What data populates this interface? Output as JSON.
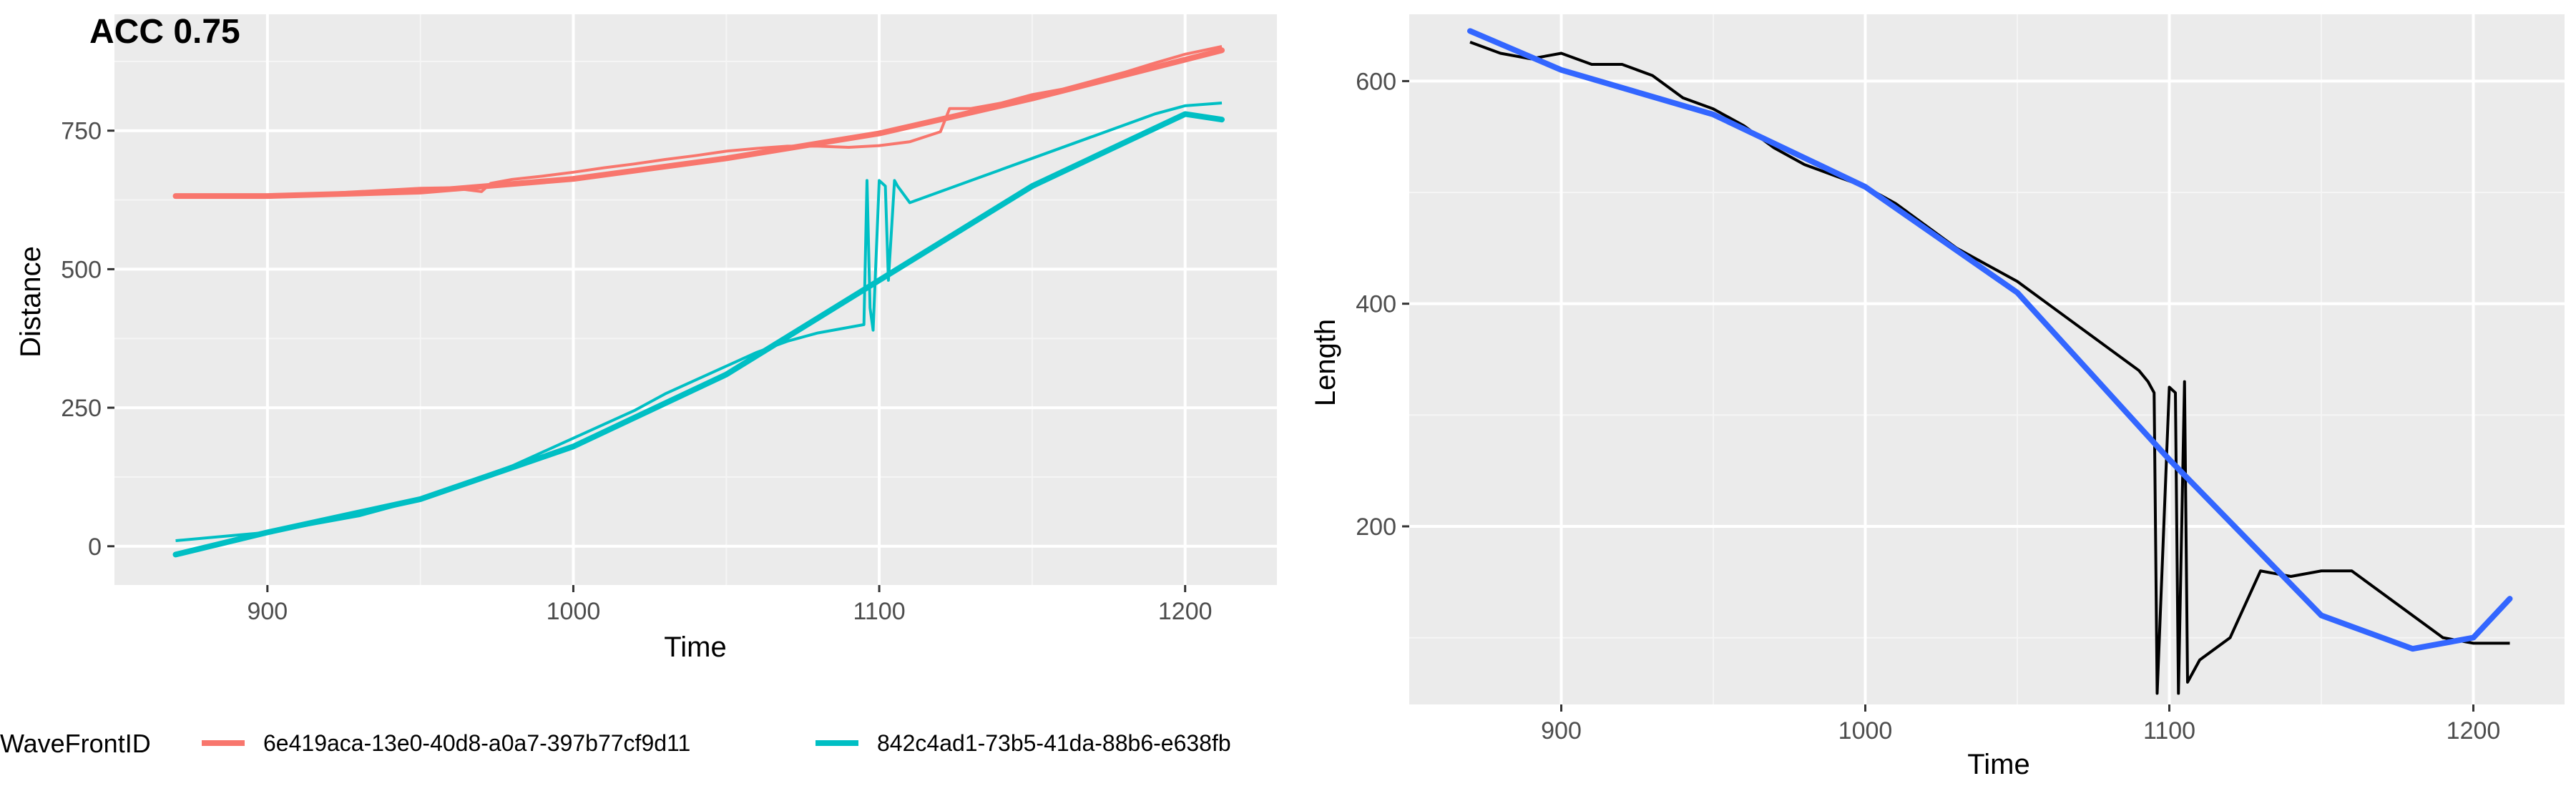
{
  "chart_data": [
    {
      "type": "line",
      "title": "ACC 0.75",
      "xlabel": "Time",
      "ylabel": "Distance",
      "xlim": [
        850,
        1230
      ],
      "ylim": [
        -70,
        960
      ],
      "x_ticks": [
        900,
        1000,
        1100,
        1200
      ],
      "y_ticks": [
        0,
        250,
        500,
        750
      ],
      "grid": true,
      "legend": {
        "title": "WaveFrontID",
        "position": "bottom",
        "entries": [
          {
            "label": "6e419aca-13e0-40d8-a0a7-397b77cf9d11",
            "color": "#F8766D"
          },
          {
            "label": "842c4ad1-73b5-41da-88b6-e638fb",
            "color": "#00BFC4"
          }
        ]
      },
      "series": [
        {
          "color": "#F8766D",
          "raw": {
            "x": [
              870,
              880,
              890,
              900,
              910,
              920,
              930,
              940,
              950,
              960,
              970,
              973,
              980,
              990,
              1000,
              1010,
              1020,
              1030,
              1040,
              1050,
              1060,
              1070,
              1080,
              1090,
              1100,
              1110,
              1120,
              1123,
              1130,
              1140,
              1150,
              1160,
              1170,
              1180,
              1190,
              1200,
              1212
            ],
            "y": [
              634,
              632,
              632,
              633,
              635,
              637,
              640,
              643,
              646,
              647,
              640,
              655,
              662,
              668,
              675,
              683,
              690,
              698,
              705,
              713,
              718,
              722,
              722,
              720,
              723,
              730,
              748,
              790,
              790,
              800,
              815,
              825,
              840,
              855,
              872,
              888,
              902
            ]
          },
          "smooth": {
            "x": [
              870,
              900,
              950,
              1000,
              1050,
              1100,
              1150,
              1212
            ],
            "y": [
              632,
              632,
              640,
              663,
              700,
              745,
              808,
              895
            ]
          }
        },
        {
          "color": "#00BFC4",
          "raw": {
            "x": [
              870,
              880,
              890,
              900,
              910,
              920,
              930,
              940,
              950,
              960,
              970,
              980,
              990,
              1000,
              1010,
              1020,
              1030,
              1040,
              1050,
              1060,
              1070,
              1080,
              1090,
              1095,
              1096,
              1097,
              1098,
              1100,
              1102,
              1103,
              1105,
              1106,
              1110,
              1120,
              1130,
              1140,
              1150,
              1160,
              1170,
              1180,
              1190,
              1200,
              1212
            ],
            "y": [
              10,
              15,
              20,
              25,
              35,
              45,
              55,
              70,
              85,
              105,
              125,
              145,
              170,
              195,
              220,
              245,
              275,
              300,
              325,
              350,
              370,
              385,
              395,
              400,
              660,
              430,
              390,
              660,
              650,
              480,
              660,
              650,
              620,
              640,
              660,
              680,
              700,
              720,
              740,
              760,
              780,
              795,
              800
            ]
          },
          "smooth": {
            "x": [
              870,
              900,
              950,
              1000,
              1050,
              1100,
              1150,
              1200,
              1212
            ],
            "y": [
              -15,
              25,
              85,
              180,
              310,
              480,
              650,
              780,
              770
            ]
          }
        }
      ]
    },
    {
      "type": "line",
      "title": "",
      "xlabel": "Time",
      "ylabel": "Length",
      "xlim": [
        850,
        1230
      ],
      "ylim": [
        40,
        660
      ],
      "x_ticks": [
        900,
        1000,
        1100,
        1200
      ],
      "y_ticks": [
        200,
        400,
        600
      ],
      "grid": true,
      "series": [
        {
          "color": "#000000",
          "raw": {
            "x": [
              870,
              880,
              890,
              900,
              910,
              920,
              930,
              940,
              950,
              960,
              970,
              980,
              990,
              1000,
              1010,
              1020,
              1030,
              1040,
              1050,
              1060,
              1070,
              1080,
              1090,
              1093,
              1095,
              1096,
              1100,
              1102,
              1103,
              1105,
              1106,
              1110,
              1120,
              1130,
              1140,
              1150,
              1160,
              1170,
              1180,
              1190,
              1200,
              1212
            ],
            "y": [
              635,
              625,
              620,
              625,
              615,
              615,
              605,
              585,
              575,
              560,
              540,
              525,
              515,
              505,
              490,
              470,
              450,
              435,
              420,
              400,
              380,
              360,
              340,
              330,
              320,
              50,
              325,
              320,
              50,
              330,
              60,
              80,
              100,
              160,
              155,
              160,
              160,
              140,
              120,
              100,
              95,
              95
            ]
          },
          "smooth": {
            "x": [
              870,
              900,
              950,
              1000,
              1050,
              1100,
              1150,
              1180,
              1200,
              1212
            ],
            "y": [
              645,
              610,
              570,
              505,
              410,
              260,
              120,
              90,
              100,
              135
            ]
          }
        }
      ]
    }
  ],
  "colors": {
    "panel": "#EBEBEB",
    "grid_major": "#FFFFFF",
    "grid_minor": "#F5F5F5",
    "axis_text": "#4D4D4D",
    "smooth_line": "#3366FF"
  }
}
